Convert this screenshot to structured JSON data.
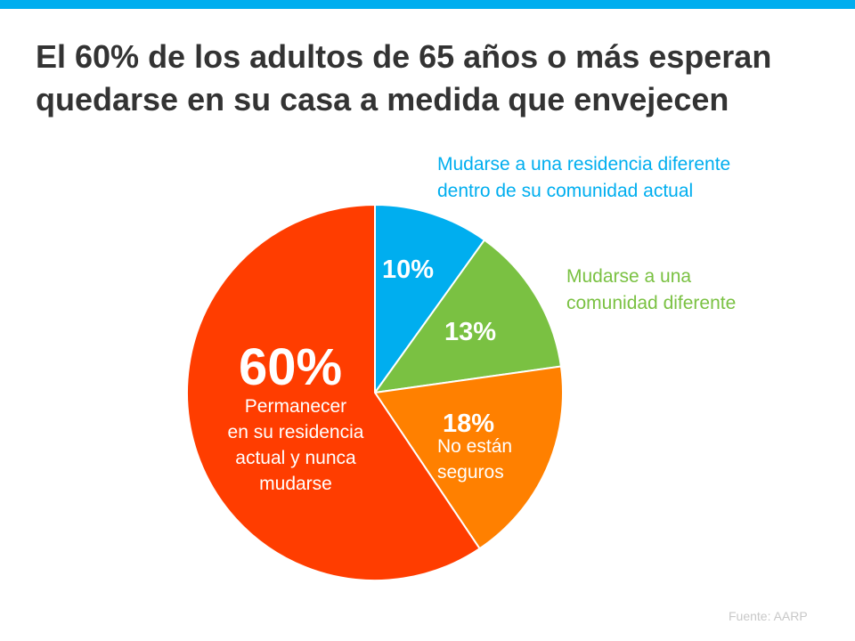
{
  "colors": {
    "top_bar": "#00aeef",
    "stay": "#ff3d00",
    "different_residence": "#00aeef",
    "different_community": "#7ac142",
    "not_sure": "#ff8000"
  },
  "chart_data": {
    "type": "pie",
    "title_lines": [
      "El 60% de los adultos de 65 años o más esperan",
      "quedarse en su casa a medida que envejecen"
    ],
    "slices": [
      {
        "value": 10,
        "value_label": "10%",
        "label_lines": [
          "Mudarse a una residencia diferente",
          "dentro de su comunidad actual"
        ],
        "color": "#00aeef"
      },
      {
        "value": 13,
        "value_label": "13%",
        "label_lines": [
          "Mudarse a una",
          "comunidad diferente"
        ],
        "color": "#7ac142"
      },
      {
        "value": 18,
        "value_label": "18%",
        "label_lines": [
          "No están",
          "seguros"
        ],
        "color": "#ff8000"
      },
      {
        "value": 60,
        "value_label": "60%",
        "label_lines": [
          "Permanecer",
          "en su residencia",
          "actual y nunca",
          "mudarse"
        ],
        "color": "#ff3d00"
      }
    ],
    "source": "Fuente: AARP"
  }
}
